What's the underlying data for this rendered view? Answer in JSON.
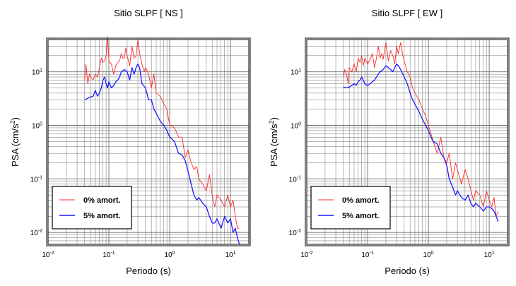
{
  "chart_data": [
    {
      "type": "line",
      "title": "Sitio SLPF [ NS ]",
      "xlabel": "Periodo (s)",
      "ylabel_main": "PSA (cm/s",
      "ylabel_sup": "2",
      "ylabel_close": ")",
      "xscale": "log",
      "yscale": "log",
      "xlim": [
        0.01,
        20
      ],
      "ylim": [
        0.006,
        40
      ],
      "grid": true,
      "legend_placement": "bottom-left",
      "xticks": [
        {
          "base": "10",
          "exp": "-2",
          "value": 0.01
        },
        {
          "base": "10",
          "exp": "-1",
          "value": 0.1
        },
        {
          "base": "10",
          "exp": "0",
          "value": 1
        },
        {
          "base": "10",
          "exp": "1",
          "value": 10
        }
      ],
      "yticks": [
        {
          "base": "10",
          "exp": "1",
          "value": 10
        },
        {
          "base": "10",
          "exp": "0",
          "value": 1
        },
        {
          "base": "10",
          "exp": "-1",
          "value": 0.1
        },
        {
          "base": "10",
          "exp": "-2",
          "value": 0.01
        }
      ],
      "series": [
        {
          "name": "0% amort.",
          "color": "#ff2a2a",
          "x": [
            0.04,
            0.042,
            0.045,
            0.048,
            0.05,
            0.055,
            0.06,
            0.065,
            0.07,
            0.075,
            0.08,
            0.085,
            0.09,
            0.095,
            0.1,
            0.11,
            0.12,
            0.13,
            0.14,
            0.15,
            0.16,
            0.17,
            0.18,
            0.19,
            0.2,
            0.22,
            0.24,
            0.26,
            0.28,
            0.3,
            0.32,
            0.35,
            0.38,
            0.4,
            0.45,
            0.5,
            0.55,
            0.6,
            0.7,
            0.8,
            0.9,
            1.0,
            1.2,
            1.4,
            1.6,
            1.8,
            2.0,
            2.2,
            2.5,
            2.8,
            3.0,
            3.5,
            4.0,
            4.5,
            5.0,
            5.5,
            6.0,
            7.0,
            8.0,
            9.0,
            10.0,
            11.0,
            12.0,
            13.0,
            14.0
          ],
          "y": [
            7,
            14,
            6,
            9,
            8,
            7,
            9,
            8,
            12,
            18,
            15,
            16,
            20,
            45,
            16,
            14,
            9,
            13,
            15,
            16,
            22,
            18,
            18,
            28,
            20,
            13,
            30,
            18,
            20,
            40,
            22,
            14,
            10,
            12,
            9,
            5,
            9,
            4,
            3.5,
            2.5,
            2,
            1,
            0.9,
            0.6,
            0.6,
            0.25,
            0.35,
            0.22,
            0.15,
            0.17,
            0.1,
            0.08,
            0.06,
            0.12,
            0.05,
            0.03,
            0.05,
            0.04,
            0.03,
            0.05,
            0.03,
            0.04,
            0.02,
            0.012,
            0.012
          ]
        },
        {
          "name": "5% amort.",
          "color": "#1a1aff",
          "x": [
            0.04,
            0.045,
            0.05,
            0.055,
            0.06,
            0.065,
            0.07,
            0.075,
            0.08,
            0.085,
            0.09,
            0.095,
            0.1,
            0.11,
            0.12,
            0.13,
            0.14,
            0.15,
            0.16,
            0.18,
            0.2,
            0.22,
            0.24,
            0.26,
            0.28,
            0.3,
            0.32,
            0.35,
            0.4,
            0.45,
            0.5,
            0.55,
            0.6,
            0.7,
            0.8,
            0.9,
            1.0,
            1.1,
            1.2,
            1.4,
            1.6,
            1.8,
            2.0,
            2.2,
            2.5,
            2.8,
            3.0,
            3.5,
            4.0,
            4.5,
            5.0,
            5.5,
            6.0,
            7.0,
            8.0,
            9.0,
            10.0,
            11.0,
            12.0,
            13.0,
            14.0
          ],
          "y": [
            3,
            3.2,
            3.4,
            3.5,
            4.5,
            3.5,
            4,
            5,
            7,
            8,
            6,
            5,
            6.5,
            5,
            5.5,
            6.5,
            7,
            8,
            10,
            11,
            10,
            7,
            12,
            9,
            12,
            14,
            12,
            6,
            5,
            3,
            3,
            2,
            1.7,
            1.2,
            1,
            0.8,
            0.6,
            0.55,
            0.5,
            0.3,
            0.28,
            0.22,
            0.14,
            0.09,
            0.05,
            0.04,
            0.045,
            0.035,
            0.03,
            0.02,
            0.015,
            0.015,
            0.018,
            0.012,
            0.02,
            0.015,
            0.018,
            0.01,
            0.012,
            0.008,
            0.006
          ]
        }
      ]
    },
    {
      "type": "line",
      "title": "Sitio SLPF [ EW ]",
      "xlabel": "Periodo (s)",
      "ylabel_main": "PSA (cm/s",
      "ylabel_sup": "2",
      "ylabel_close": ")",
      "xscale": "log",
      "yscale": "log",
      "xlim": [
        0.01,
        20
      ],
      "ylim": [
        0.006,
        40
      ],
      "grid": true,
      "legend_placement": "bottom-left",
      "xticks": [
        {
          "base": "10",
          "exp": "-2",
          "value": 0.01
        },
        {
          "base": "10",
          "exp": "-1",
          "value": 0.1
        },
        {
          "base": "10",
          "exp": "0",
          "value": 1
        },
        {
          "base": "10",
          "exp": "1",
          "value": 10
        }
      ],
      "yticks": [
        {
          "base": "10",
          "exp": "1",
          "value": 10
        },
        {
          "base": "10",
          "exp": "0",
          "value": 1
        },
        {
          "base": "10",
          "exp": "-1",
          "value": 0.1
        },
        {
          "base": "10",
          "exp": "-2",
          "value": 0.01
        }
      ],
      "series": [
        {
          "name": "0% amort.",
          "color": "#ff2a2a",
          "x": [
            0.04,
            0.042,
            0.045,
            0.048,
            0.05,
            0.055,
            0.06,
            0.065,
            0.07,
            0.075,
            0.08,
            0.085,
            0.09,
            0.1,
            0.11,
            0.12,
            0.13,
            0.14,
            0.15,
            0.16,
            0.17,
            0.18,
            0.2,
            0.22,
            0.24,
            0.26,
            0.28,
            0.3,
            0.32,
            0.35,
            0.38,
            0.4,
            0.45,
            0.5,
            0.55,
            0.6,
            0.7,
            0.8,
            0.9,
            1.0,
            1.2,
            1.4,
            1.6,
            1.8,
            2.0,
            2.2,
            2.5,
            2.8,
            3.0,
            3.5,
            4.0,
            4.5,
            5.0,
            5.5,
            6.0,
            7.0,
            8.0,
            9.0,
            10.0,
            11.0,
            12.0,
            13.0,
            14.0
          ],
          "y": [
            8,
            11,
            9,
            6,
            12,
            10,
            14,
            10,
            18,
            15,
            20,
            13,
            18,
            14,
            17,
            22,
            12,
            18,
            30,
            18,
            22,
            17,
            35,
            16,
            25,
            20,
            14,
            30,
            22,
            35,
            20,
            16,
            10,
            8,
            5,
            4,
            3,
            2,
            1.5,
            1,
            0.5,
            0.3,
            0.6,
            0.25,
            0.2,
            0.3,
            0.1,
            0.2,
            0.15,
            0.08,
            0.15,
            0.1,
            0.06,
            0.04,
            0.06,
            0.05,
            0.03,
            0.06,
            0.04,
            0.03,
            0.045,
            0.02,
            0.025
          ]
        },
        {
          "name": "5% amort.",
          "color": "#1a1aff",
          "x": [
            0.04,
            0.045,
            0.05,
            0.055,
            0.06,
            0.065,
            0.07,
            0.075,
            0.08,
            0.09,
            0.1,
            0.11,
            0.12,
            0.13,
            0.14,
            0.15,
            0.16,
            0.18,
            0.2,
            0.22,
            0.24,
            0.26,
            0.28,
            0.3,
            0.32,
            0.35,
            0.4,
            0.45,
            0.5,
            0.55,
            0.6,
            0.7,
            0.8,
            0.9,
            1.0,
            1.1,
            1.2,
            1.4,
            1.6,
            1.8,
            2.0,
            2.2,
            2.5,
            2.8,
            3.0,
            3.5,
            4.0,
            4.5,
            5.0,
            5.5,
            6.0,
            7.0,
            8.0,
            9.0,
            10.0,
            11.0,
            12.0,
            13.0,
            14.0
          ],
          "y": [
            5.2,
            5,
            5.2,
            5.6,
            6,
            5.6,
            6.5,
            7,
            8,
            6,
            5.5,
            6,
            6.5,
            7,
            8,
            9,
            10,
            11,
            13,
            12,
            11,
            10,
            12,
            14,
            13,
            11,
            8,
            6,
            4,
            3,
            2.5,
            1.8,
            1.3,
            1,
            0.8,
            0.6,
            0.5,
            0.45,
            0.3,
            0.25,
            0.18,
            0.1,
            0.07,
            0.05,
            0.06,
            0.045,
            0.04,
            0.05,
            0.035,
            0.03,
            0.035,
            0.03,
            0.025,
            0.03,
            0.03,
            0.028,
            0.025,
            0.02,
            0.016
          ]
        }
      ]
    }
  ]
}
